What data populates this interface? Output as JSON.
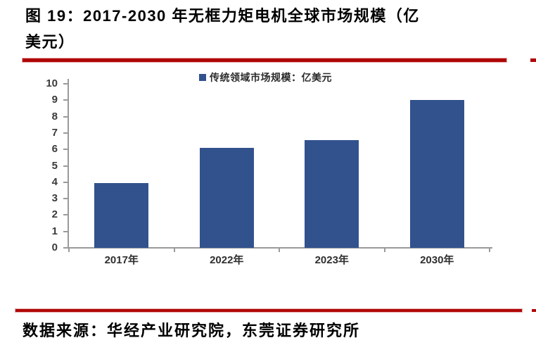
{
  "page": {
    "figure_caption_line1": "图 19：2017-2030 年无框力矩电机全球市场规模（亿",
    "figure_caption_line2": "美元）",
    "source_text": "数据来源：华经产业研究院，东莞证券研究所"
  },
  "legend": {
    "marker_shape": "square",
    "label": "传统领域市场规模：亿美元"
  },
  "colors": {
    "bar_blue": "#32528e",
    "rule_red": "#b00606",
    "axis_gray": "#9a9a9a",
    "label_dark": "#3a3a3a"
  },
  "chart_data": {
    "type": "bar",
    "title": "",
    "categories": [
      "2017年",
      "2022年",
      "2023年",
      "2030年"
    ],
    "series": [
      {
        "name": "传统领域市场规模：亿美元",
        "values": [
          3.95,
          6.1,
          6.55,
          9.0
        ]
      }
    ],
    "xlabel": "",
    "ylabel": "",
    "ylim": [
      0,
      10
    ],
    "ytick_step": 1,
    "grid": false,
    "legend_position": "top-center",
    "bar_color": "#32528e"
  }
}
